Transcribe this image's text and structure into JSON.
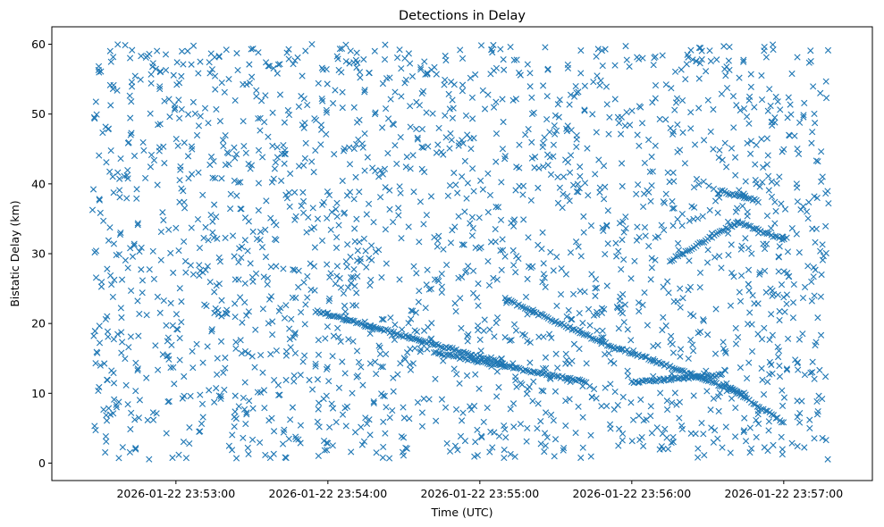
{
  "chart_data": {
    "type": "scatter",
    "title": "Detections in Delay",
    "xlabel": "Time (UTC)",
    "ylabel": "Bistatic Delay (km)",
    "x_start": "2026-01-22 23:52:27",
    "x_end": "2026-01-22 23:57:18",
    "xlim": [
      "2026-01-22 23:52:11",
      "2026-01-22 23:57:35"
    ],
    "ylim": [
      -2.5,
      62.5
    ],
    "x_ticks": [
      {
        "value": "2026-01-22 23:53:00",
        "label": "2026-01-22 23:53:00"
      },
      {
        "value": "2026-01-22 23:54:00",
        "label": "2026-01-22 23:54:00"
      },
      {
        "value": "2026-01-22 23:55:00",
        "label": "2026-01-22 23:55:00"
      },
      {
        "value": "2026-01-22 23:56:00",
        "label": "2026-01-22 23:56:00"
      },
      {
        "value": "2026-01-22 23:57:00",
        "label": "2026-01-22 23:57:00"
      }
    ],
    "y_ticks": [
      0,
      10,
      20,
      30,
      40,
      50,
      60
    ],
    "marker": "x",
    "color": "#1f77b4",
    "grid": false,
    "noise_detections": {
      "count": 2100,
      "delay_range": [
        0.5,
        60
      ]
    },
    "tracks": [
      {
        "t_start": "2026-01-22 23:53:55",
        "t_end": "2026-01-22 23:55:10",
        "delay_start": 21.8,
        "delay_end": 14.2
      },
      {
        "t_start": "2026-01-22 23:54:42",
        "t_end": "2026-01-22 23:55:42",
        "delay_start": 15.8,
        "delay_end": 11.6
      },
      {
        "t_start": "2026-01-22 23:55:10",
        "t_end": "2026-01-22 23:55:55",
        "delay_start": 23.5,
        "delay_end": 16.2
      },
      {
        "t_start": "2026-01-22 23:56:00",
        "t_end": "2026-01-22 23:56:35",
        "delay_start": 11.6,
        "delay_end": 12.6
      },
      {
        "t_start": "2026-01-22 23:55:55",
        "t_end": "2026-01-22 23:56:45",
        "delay_start": 16.5,
        "delay_end": 9.8
      },
      {
        "t_start": "2026-01-22 23:56:15",
        "t_end": "2026-01-22 23:56:42",
        "delay_start": 29.0,
        "delay_end": 34.5
      },
      {
        "t_start": "2026-01-22 23:56:42",
        "t_end": "2026-01-22 23:57:00",
        "delay_start": 34.5,
        "delay_end": 32.0
      },
      {
        "t_start": "2026-01-22 23:56:40",
        "t_end": "2026-01-22 23:57:00",
        "delay_start": 10.5,
        "delay_end": 5.8
      },
      {
        "t_start": "2026-01-22 23:56:35",
        "t_end": "2026-01-22 23:56:50",
        "delay_start": 39.0,
        "delay_end": 37.5
      }
    ]
  }
}
